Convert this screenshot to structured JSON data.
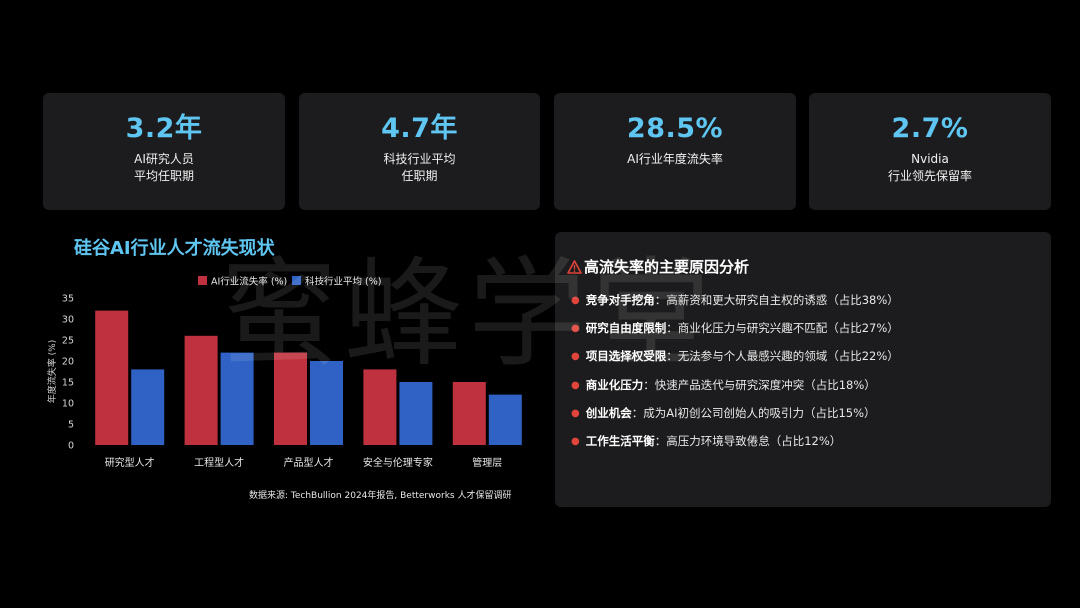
{
  "stats": [
    {
      "value": "3.2年",
      "label": "AI研究人员\n平均任职期"
    },
    {
      "value": "4.7年",
      "label": "科技行业平均\n任职期"
    },
    {
      "value": "28.5%",
      "label": "AI行业年度流失率"
    },
    {
      "value": "2.7%",
      "label": "Nvidia\n行业领先保留率"
    }
  ],
  "chart_data": {
    "type": "bar",
    "title": "硅谷AI行业人才流失现状",
    "ylabel": "年度流失率 (%)",
    "xlabel": "",
    "ylim": [
      0,
      35
    ],
    "yticks": [
      0,
      5,
      10,
      15,
      20,
      25,
      30,
      35
    ],
    "grid": false,
    "legend_position": "top",
    "categories": [
      "研究型人才",
      "工程型人才",
      "产品型人才",
      "安全与伦理专家",
      "管理层"
    ],
    "series": [
      {
        "name": "AI行业流失率 (%)",
        "color": "#c0313f",
        "values": [
          32,
          26,
          22,
          18,
          15
        ]
      },
      {
        "name": "科技行业平均 (%)",
        "color": "#2f62c4",
        "values": [
          18,
          22,
          20,
          15,
          12
        ]
      }
    ],
    "source": "数据来源: TechBullion 2024年报告, Betterworks 人才保留调研"
  },
  "reasons": {
    "icon": "warning-icon",
    "title": "高流失率的主要原因分析",
    "items": [
      {
        "head": "竞争对手挖角",
        "text": "：高薪资和更大研究自主权的诱惑（占比38%）"
      },
      {
        "head": "研究自由度限制",
        "text": "：商业化压力与研究兴趣不匹配（占比27%）"
      },
      {
        "head": "项目选择权受限",
        "text": "：无法参与个人最感兴趣的领域（占比22%）"
      },
      {
        "head": "商业化压力",
        "text": "：快速产品迭代与研究深度冲突（占比18%）"
      },
      {
        "head": "创业机会",
        "text": "：成为AI初创公司创始人的吸引力（占比15%）"
      },
      {
        "head": "工作生活平衡",
        "text": "：高压力环境导致倦怠（占比12%）"
      }
    ]
  },
  "watermark": "蜜蜂学堂"
}
